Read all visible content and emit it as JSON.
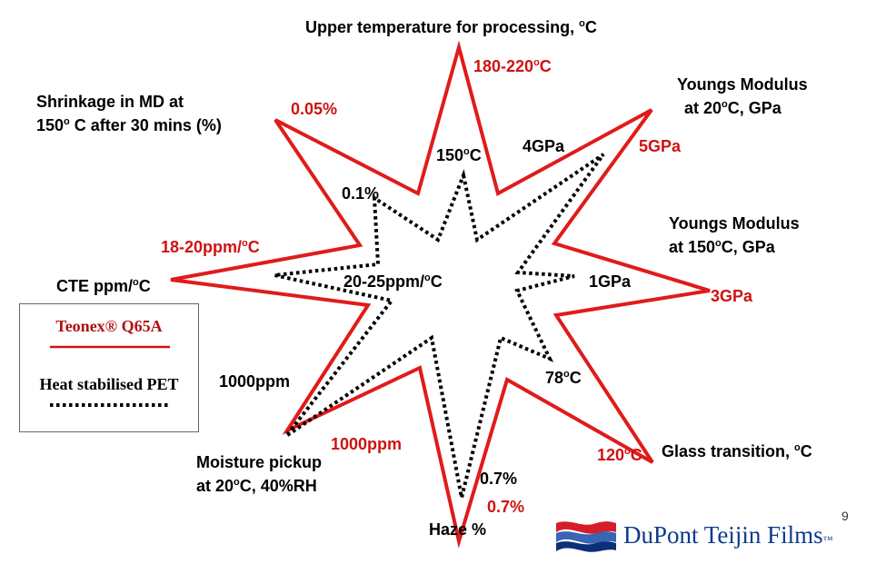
{
  "axes": {
    "top": {
      "label": "Upper temperature for processing, ",
      "unit_sup": "o",
      "unit_after": "C",
      "teonex": {
        "pre": "180-220",
        "sup": "o",
        "post": "C"
      },
      "pet": {
        "pre": "150",
        "sup": "o",
        "post": "C"
      }
    },
    "yield_20": {
      "line1": "Youngs Modulus",
      "line2_pre": "at 20",
      "line2_sup": "o",
      "line2_post": "C, GPa",
      "teonex": "5GPa",
      "pet": "4GPa"
    },
    "yield_150": {
      "line1": "Youngs Modulus",
      "line2_pre": "at 150",
      "line2_sup": "o",
      "line2_post": "C, GPa",
      "teonex": "3GPa",
      "pet": "1GPa"
    },
    "glass": {
      "label_pre": "Glass transition, ",
      "label_sup": "o",
      "label_post": "C",
      "teonex": {
        "pre": "120",
        "sup": "o",
        "post": "C"
      },
      "pet": {
        "pre": "78",
        "sup": "o",
        "post": "C"
      }
    },
    "haze": {
      "label": "Haze %",
      "teonex": "0.7%",
      "pet": "0.7%"
    },
    "moisture": {
      "line1": "Moisture pickup",
      "line2_pre": "at 20",
      "line2_sup": "o",
      "line2_post": "C, 40%RH",
      "teonex": "1000ppm",
      "pet": "1000ppm"
    },
    "cte": {
      "label_pre": "CTE ppm/",
      "label_sup": "o",
      "label_post": "C",
      "teonex": {
        "pre": "18-20ppm/",
        "sup": "o",
        "post": "C"
      },
      "pet": {
        "pre": "20-25ppm/",
        "sup": "o",
        "post": "C"
      }
    },
    "shrink": {
      "line1": "Shrinkage in MD at",
      "line2_pre": "150",
      "line2_sup": "o",
      "line2_post": " C after 30 mins (%)",
      "teonex": "0.05%",
      "pet": "0.1%"
    }
  },
  "legend": {
    "teonex": "Teonex® Q65A",
    "pet": "Heat stabilised PET"
  },
  "colors": {
    "teonex": "#e01b1b",
    "pet": "#000000",
    "label_red": "#d01111"
  },
  "logo": {
    "text": "DuPont Teijin Films",
    "tm": "™"
  },
  "page_number": "9"
}
